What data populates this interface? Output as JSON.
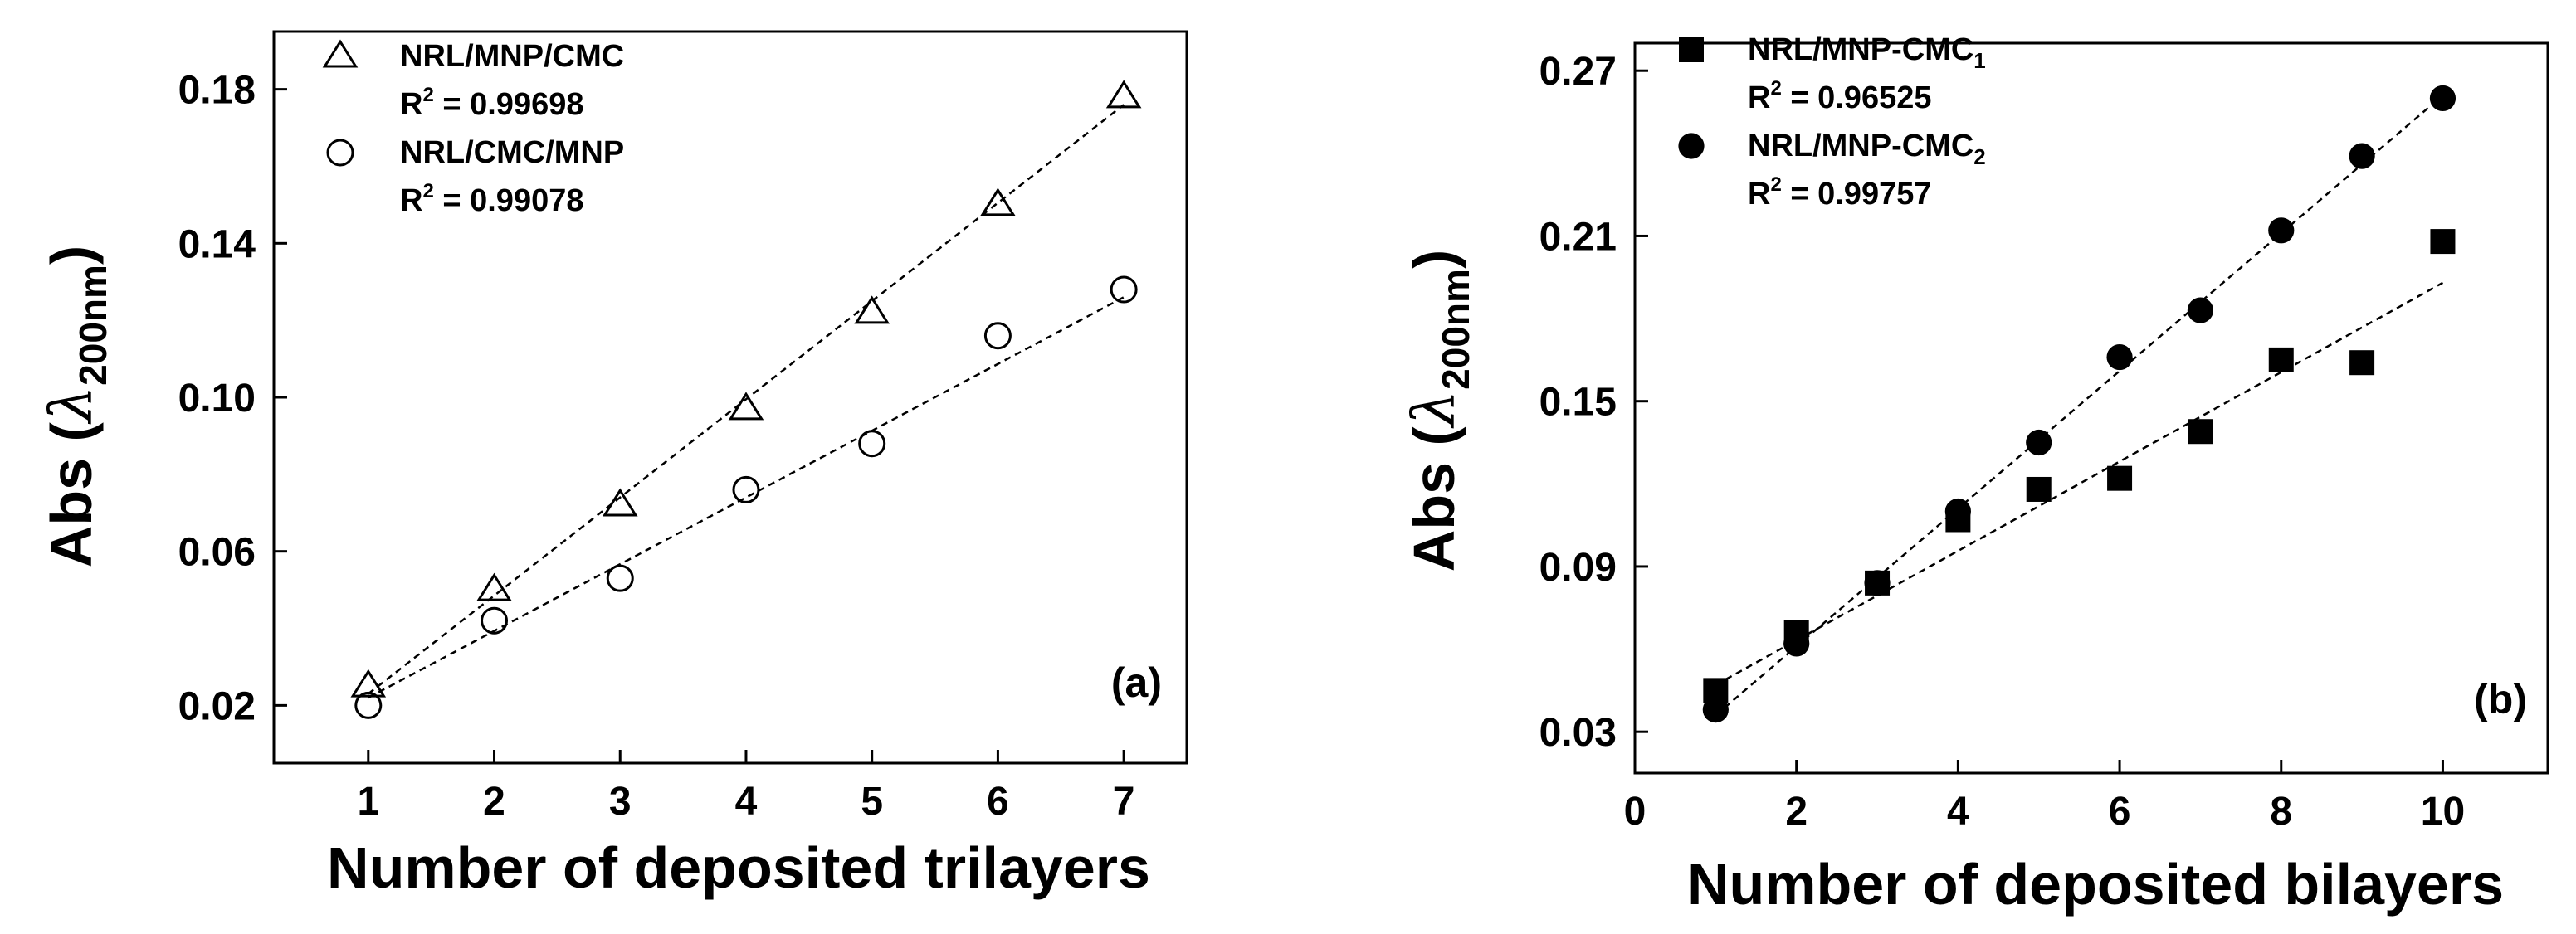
{
  "chart_data": [
    {
      "type": "scatter",
      "panel_label": "(a)",
      "xlabel": "Number of deposited trilayers",
      "ylabel": {
        "prefix": "Abs (",
        "symbol": "λ",
        "subscript": "200nm",
        "suffix": ")"
      },
      "xlim": [
        0.25,
        7.5
      ],
      "ylim": [
        0.005,
        0.195
      ],
      "xticks": [
        1,
        2,
        3,
        4,
        5,
        6,
        7
      ],
      "yticks": [
        0.02,
        0.06,
        0.1,
        0.14,
        0.18
      ],
      "ytick_labels": [
        "0.02",
        "0.06",
        "0.10",
        "0.14",
        "0.18"
      ],
      "legend_position": "top-left",
      "series": [
        {
          "name": "NRL/MNP/CMC",
          "r2_label": "R",
          "r2_value": " = 0.99698",
          "marker": "triangle-open",
          "x": [
            1,
            2,
            3,
            4,
            5,
            6,
            7
          ],
          "y": [
            0.025,
            0.05,
            0.072,
            0.097,
            0.122,
            0.15,
            0.178
          ],
          "fit": {
            "x": [
              1,
              7
            ],
            "y": [
              0.023,
              0.176
            ]
          }
        },
        {
          "name": "NRL/CMC/MNP",
          "r2_label": "R",
          "r2_value": " = 0.99078",
          "marker": "circle-open",
          "x": [
            1,
            2,
            3,
            4,
            5,
            6,
            7
          ],
          "y": [
            0.02,
            0.042,
            0.053,
            0.076,
            0.088,
            0.116,
            0.128
          ],
          "fit": {
            "x": [
              1,
              7
            ],
            "y": [
              0.022,
              0.126
            ]
          }
        }
      ]
    },
    {
      "type": "scatter",
      "panel_label": "(b)",
      "xlabel": "Number of deposited bilayers",
      "ylabel": {
        "prefix": "Abs (",
        "symbol": "λ",
        "subscript": "200nm",
        "suffix": ")"
      },
      "xlim": [
        0,
        11.3
      ],
      "ylim": [
        0.015,
        0.28
      ],
      "xticks": [
        0,
        2,
        4,
        6,
        8,
        10
      ],
      "yticks": [
        0.03,
        0.09,
        0.15,
        0.21,
        0.27
      ],
      "ytick_labels": [
        "0.03",
        "0.09",
        "0.15",
        "0.21",
        "0.27"
      ],
      "legend_position": "top-left",
      "series": [
        {
          "name": "NRL/MNP-CMC",
          "name_subscript": "1",
          "r2_label": "R",
          "r2_value": " = 0.96525",
          "marker": "square-filled",
          "x": [
            1,
            2,
            3,
            4,
            5,
            6,
            7,
            8,
            9,
            10
          ],
          "y": [
            0.045,
            0.066,
            0.084,
            0.107,
            0.118,
            0.122,
            0.139,
            0.165,
            0.164,
            0.208
          ],
          "fit": {
            "x": [
              1,
              10
            ],
            "y": [
              0.047,
              0.193
            ]
          }
        },
        {
          "name": "NRL/MNP-CMC",
          "name_subscript": "2",
          "r2_label": "R",
          "r2_value": " = 0.99757",
          "marker": "circle-filled",
          "x": [
            1,
            2,
            3,
            4,
            5,
            6,
            7,
            8,
            9,
            10
          ],
          "y": [
            0.038,
            0.062,
            0.084,
            0.11,
            0.135,
            0.166,
            0.183,
            0.212,
            0.239,
            0.26
          ],
          "fit": {
            "x": [
              1,
              10
            ],
            "y": [
              0.036,
              0.261
            ]
          }
        }
      ]
    }
  ]
}
